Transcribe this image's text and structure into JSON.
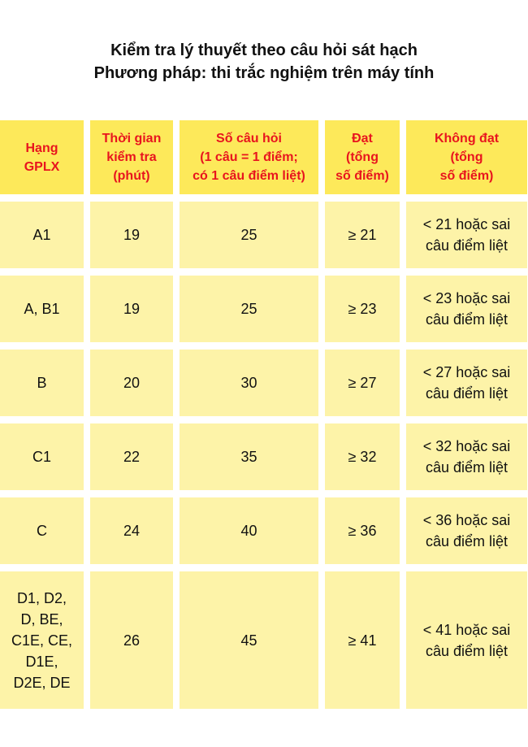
{
  "title": {
    "line1": "Kiểm tra lý thuyết theo câu hỏi sát hạch",
    "line2": "Phương pháp: thi trắc nghiệm trên máy tính"
  },
  "colors": {
    "header_bg": "#fde95a",
    "header_text": "#e8141e",
    "cell_bg": "#fdf3a8"
  },
  "table": {
    "headers": [
      "Hạng\nGPLX",
      "Thời gian\nkiểm tra\n(phút)",
      "Số câu hỏi\n(1 câu = 1 điểm;\ncó 1 câu điểm liệt)",
      "Đạt\n(tổng\nsố điểm)",
      "Không đạt\n(tổng\nsố điểm)"
    ],
    "rows": [
      [
        "A1",
        "19",
        "25",
        "≥ 21",
        "< 21 hoặc sai\ncâu điểm liệt"
      ],
      [
        "A, B1",
        "19",
        "25",
        "≥ 23",
        "< 23 hoặc sai\ncâu điểm liệt"
      ],
      [
        "B",
        "20",
        "30",
        "≥ 27",
        "< 27 hoặc sai\ncâu điểm liệt"
      ],
      [
        "C1",
        "22",
        "35",
        "≥ 32",
        "< 32 hoặc sai\ncâu điểm liệt"
      ],
      [
        "C",
        "24",
        "40",
        "≥ 36",
        "< 36 hoặc sai\ncâu điểm liệt"
      ],
      [
        "D1, D2,\nD, BE,\nC1E, CE,\nD1E,\nD2E, DE",
        "26",
        "45",
        "≥ 41",
        "< 41 hoặc sai\ncâu điểm liệt"
      ]
    ]
  }
}
